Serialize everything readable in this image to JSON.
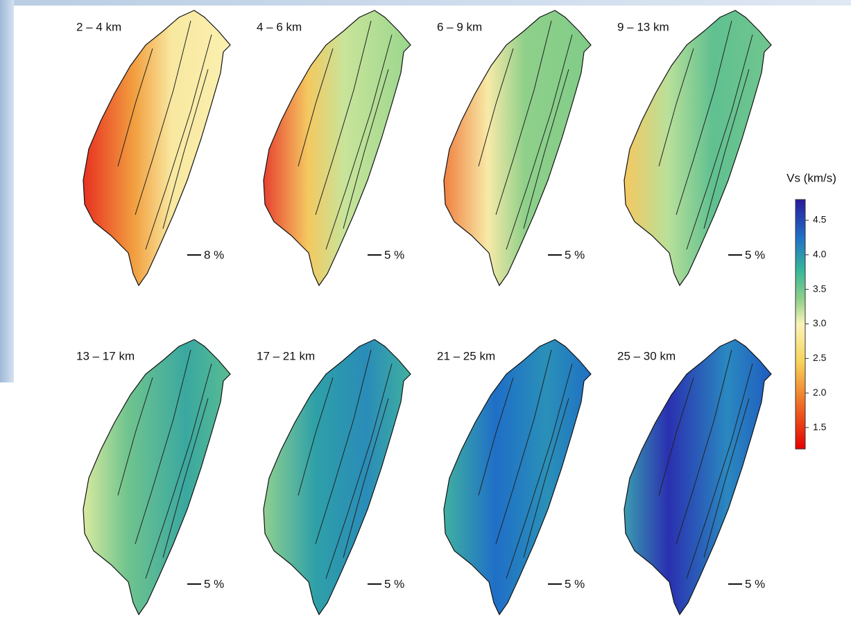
{
  "panels": [
    {
      "label": "2 – 4 km",
      "scale": "8 %"
    },
    {
      "label": "4 – 6 km",
      "scale": "5 %"
    },
    {
      "label": "6 – 9 km",
      "scale": "5 %"
    },
    {
      "label": "9 – 13 km",
      "scale": "5 %"
    },
    {
      "label": "13 – 17 km",
      "scale": "5 %"
    },
    {
      "label": "17 – 21 km",
      "scale": "5 %"
    },
    {
      "label": "21 – 25 km",
      "scale": "5 %"
    },
    {
      "label": "25 – 30 km",
      "scale": "5 %"
    }
  ],
  "colorbar": {
    "title": "Vs (km/s)",
    "range": [
      1.19,
      4.8
    ],
    "ticks": [
      1.5,
      {
        "value": 2,
        "label": "2.0"
      },
      2.5,
      {
        "value": 3,
        "label": "3.0"
      },
      3.5,
      {
        "value": 4,
        "label": "4.0"
      },
      4.5
    ]
  }
}
